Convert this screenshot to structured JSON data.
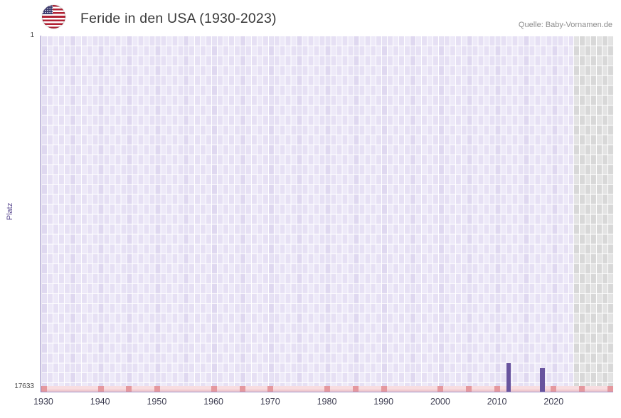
{
  "header": {
    "title": "Feride in den USA (1930-2023)",
    "source": "Quelle: Baby-Vornamen.de"
  },
  "chart_data": {
    "type": "bar",
    "title": "Feride in den USA (1930-2023)",
    "xlabel": "",
    "ylabel": "Platz",
    "y_axis": {
      "min": 1,
      "max": 17633,
      "inverted": true,
      "top_tick_label": "1",
      "bottom_tick_label": "17633"
    },
    "x_axis": {
      "start_year": 1930,
      "end_year": 2030,
      "tick_years": [
        1930,
        1940,
        1950,
        1960,
        1970,
        1980,
        1990,
        2000,
        2010,
        2020
      ]
    },
    "series": [
      {
        "year": 2012,
        "rank": 16500
      },
      {
        "year": 2018,
        "rank": 16750
      }
    ],
    "no_data_region": {
      "from_year": 2024,
      "to_year": 2030
    },
    "minor_tick_years": [
      1930,
      1940,
      1945,
      1950,
      1960,
      1965,
      1970,
      1980,
      1985,
      1990,
      2000,
      2005,
      2010,
      2020,
      2025,
      2030
    ],
    "grid": true,
    "colors": {
      "bar": "#68549e",
      "cell_a": "#e6e0f4",
      "cell_b": "#ede9f8",
      "grid_line": "#ffffff",
      "no_data_cell_a": "#d8d8d8",
      "no_data_cell_b": "#e3e3e3",
      "strip": "#f8dde0",
      "strip_edge": "#f1cbd0",
      "marker": "#e5989e",
      "axis": "#7a6ab3",
      "axis_light": "#9d8fc7",
      "flag_red": "#b22234",
      "flag_blue": "#3c3b6e"
    }
  }
}
